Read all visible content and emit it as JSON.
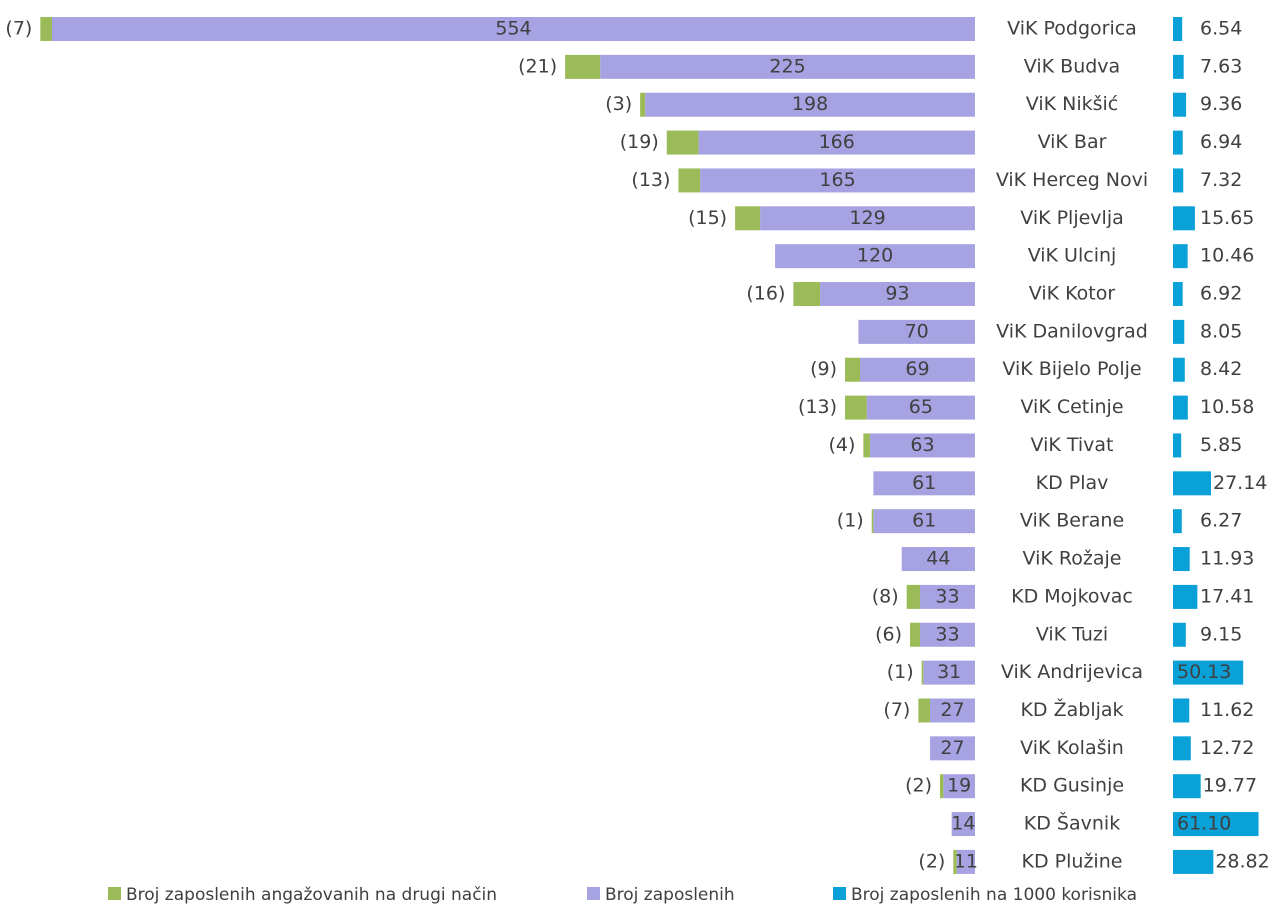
{
  "chart_data": {
    "type": "bar",
    "categories": [
      "ViK Podgorica",
      "ViK Budva",
      "ViK Nikšić",
      "ViK Bar",
      "ViK Herceg Novi",
      "ViK Pljevlja",
      "ViK Ulcinj",
      "ViK Kotor",
      "ViK Danilovgrad",
      "ViK Bijelo Polje",
      "ViK Cetinje",
      "ViK Tivat",
      "KD Plav",
      "ViK Berane",
      "ViK Rožaje",
      "KD Mojkovac",
      "ViK Tuzi",
      "ViK Andrijevica",
      "KD Žabljak",
      "ViK Kolašin",
      "KD Gusinje",
      "KD Šavnik",
      "KD Plužine"
    ],
    "series": [
      {
        "name": "Broj zaposlenih angažovanih na drugi način",
        "color": "#9bbb59",
        "values": [
          7,
          21,
          3,
          19,
          13,
          15,
          null,
          16,
          null,
          9,
          13,
          4,
          null,
          1,
          null,
          8,
          6,
          1,
          7,
          null,
          2,
          null,
          2
        ],
        "value_labels": [
          "(7)",
          "(21)",
          "(3)",
          "(19)",
          "(13)",
          "(15)",
          null,
          "(16)",
          null,
          "(9)",
          "(13)",
          "(4)",
          null,
          "(1)",
          null,
          "(8)",
          "(6)",
          "(1)",
          "(7)",
          null,
          "(2)",
          null,
          "(2)"
        ]
      },
      {
        "name": "Broj zaposlenih",
        "color": "#a7a3e3",
        "values": [
          554,
          225,
          198,
          166,
          165,
          129,
          120,
          93,
          70,
          69,
          65,
          63,
          61,
          61,
          44,
          33,
          33,
          31,
          27,
          27,
          19,
          14,
          11
        ]
      },
      {
        "name": "Broj zaposlenih na 1000 korisnika",
        "color": "#0aa0d8",
        "values": [
          6.54,
          7.63,
          9.36,
          6.94,
          7.32,
          15.65,
          10.46,
          6.92,
          8.05,
          8.42,
          10.58,
          5.85,
          27.14,
          6.27,
          11.93,
          17.41,
          9.15,
          50.13,
          11.62,
          12.72,
          19.77,
          61.1,
          28.82
        ],
        "value_labels": [
          "6.54",
          "7.63",
          "9.36",
          "6.94",
          "7.32",
          "15.65",
          "10.46",
          "6.92",
          "8.05",
          "8.42",
          "10.58",
          "5.85",
          "27.14",
          "6.27",
          "11.93",
          "17.41",
          "9.15",
          "50.13",
          "11.62",
          "12.72",
          "19.77",
          "61.10",
          "28.82"
        ]
      }
    ]
  }
}
